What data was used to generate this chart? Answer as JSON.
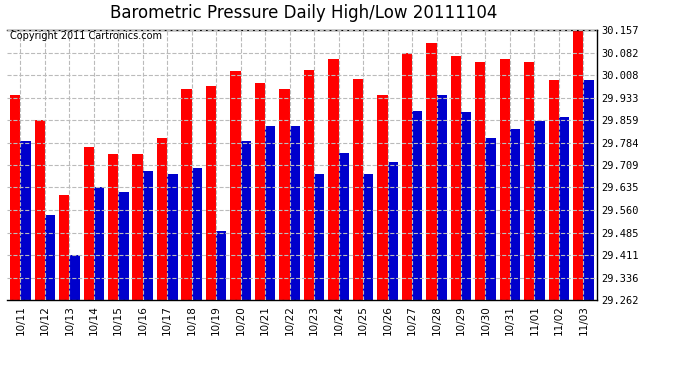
{
  "title": "Barometric Pressure Daily High/Low 20111104",
  "copyright_text": "Copyright 2011 Cartronics.com",
  "categories": [
    "10/11",
    "10/12",
    "10/13",
    "10/14",
    "10/15",
    "10/16",
    "10/17",
    "10/18",
    "10/19",
    "10/20",
    "10/21",
    "10/22",
    "10/23",
    "10/24",
    "10/25",
    "10/26",
    "10/27",
    "10/28",
    "10/29",
    "10/30",
    "10/31",
    "11/01",
    "11/02",
    "11/03"
  ],
  "high_values": [
    29.94,
    29.86,
    29.61,
    29.77,
    29.745,
    29.745,
    29.8,
    29.96,
    29.97,
    30.02,
    29.98,
    29.96,
    30.025,
    30.06,
    29.995,
    29.94,
    30.08,
    30.115,
    30.07,
    30.05,
    30.06,
    30.05,
    29.99,
    30.157
  ],
  "low_values": [
    29.79,
    29.545,
    29.41,
    29.635,
    29.62,
    29.69,
    29.68,
    29.7,
    29.49,
    29.79,
    29.84,
    29.84,
    29.68,
    29.75,
    29.68,
    29.72,
    29.89,
    29.94,
    29.885,
    29.8,
    29.83,
    29.855,
    29.87,
    29.99
  ],
  "bar_width": 0.42,
  "high_color": "#ff0000",
  "low_color": "#0000cc",
  "bg_color": "#ffffff",
  "plot_bg_color": "#ffffff",
  "grid_color": "#bbbbbb",
  "yticks": [
    29.262,
    29.336,
    29.411,
    29.485,
    29.56,
    29.635,
    29.709,
    29.784,
    29.859,
    29.933,
    30.008,
    30.082,
    30.157
  ],
  "ymin": 29.262,
  "ymax": 30.157,
  "title_fontsize": 12,
  "tick_fontsize": 7.5,
  "copyright_fontsize": 7
}
